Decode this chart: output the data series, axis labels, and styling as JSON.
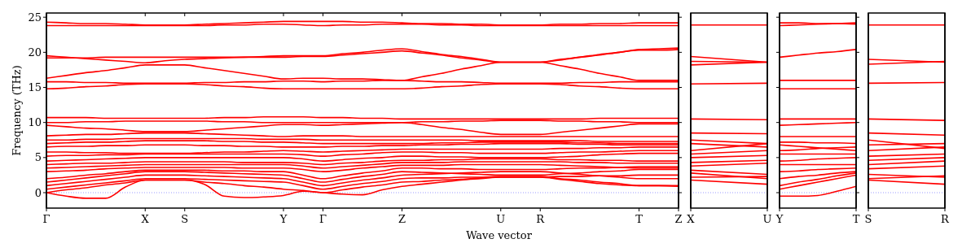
{
  "chart_data": [
    {
      "type": "line",
      "xlabel": "Wave vector",
      "ylabel": "Frequency (THz)",
      "ylim": [
        -2.2,
        25.6
      ],
      "yticks": [
        0,
        5,
        10,
        15,
        20,
        25
      ],
      "categories": [
        "Γ",
        null,
        null,
        null,
        null,
        "X",
        null,
        "S",
        null,
        null,
        null,
        null,
        "Y",
        null,
        "Γ",
        null,
        null,
        null,
        "Z",
        null,
        null,
        null,
        null,
        "U",
        null,
        "R",
        null,
        null,
        null,
        null,
        "T",
        null,
        "Z"
      ],
      "ref_lines": [
        {
          "axis": "y",
          "value": 0,
          "color": "#8080ff",
          "line_style": "dotted"
        }
      ],
      "series": [
        {
          "color": "#ff0000",
          "values": [
            0,
            -0.5,
            -0.8,
            -0.8,
            0.8,
            1.8,
            1.8,
            1.8,
            1.2,
            -0.5,
            -0.7,
            -0.6,
            -0.4,
            0.2,
            0,
            -0.2,
            -0.3,
            0.4,
            0.9,
            1.2,
            1.5,
            1.8,
            2.0,
            2.2,
            2.2,
            2.2,
            1.9,
            1.6,
            1.3,
            1.1,
            1.0,
            1.0,
            1.0
          ]
        },
        {
          "color": "#ff0000",
          "values": [
            0,
            0.4,
            0.7,
            1.1,
            1.4,
            1.8,
            1.8,
            1.8,
            1.5,
            1.3,
            1.0,
            0.8,
            0.5,
            0.3,
            0,
            0.4,
            0.8,
            1.1,
            1.5,
            1.6,
            1.8,
            1.9,
            2.1,
            2.2,
            2.2,
            2.2,
            2.3,
            2.3,
            2.4,
            2.4,
            2.5,
            2.5,
            2.5
          ]
        },
        {
          "color": "#ff0000",
          "values": [
            0.5,
            0.8,
            1.1,
            1.4,
            1.7,
            2.0,
            2.0,
            2.0,
            1.9,
            1.8,
            1.7,
            1.6,
            1.5,
            1.0,
            0.5,
            0.9,
            1.3,
            1.6,
            2.0,
            2.1,
            2.1,
            2.2,
            2.2,
            2.3,
            2.3,
            2.3,
            2.0,
            1.8,
            1.5,
            1.3,
            1.0,
            1.0,
            0.9
          ]
        },
        {
          "color": "#ff0000",
          "values": [
            1.0,
            1.3,
            1.6,
            1.9,
            2.2,
            2.5,
            2.5,
            2.5,
            2.4,
            2.3,
            2.2,
            2.1,
            2.0,
            1.5,
            1.0,
            1.4,
            1.8,
            2.1,
            2.5,
            2.6,
            2.7,
            2.8,
            2.9,
            3.0,
            3.0,
            3.0,
            2.8,
            2.6,
            2.4,
            2.2,
            2.0,
            2.0,
            2.0
          ]
        },
        {
          "color": "#ff0000",
          "values": [
            1.5,
            1.8,
            2.1,
            2.4,
            2.7,
            3.0,
            3.0,
            3.0,
            2.9,
            2.8,
            2.7,
            2.6,
            2.5,
            2.0,
            1.5,
            1.9,
            2.3,
            2.6,
            3.0,
            2.9,
            2.8,
            2.7,
            2.6,
            2.5,
            2.5,
            2.5,
            2.7,
            2.8,
            3.0,
            3.1,
            3.3,
            3.3,
            3.3
          ]
        },
        {
          "color": "#ff0000",
          "values": [
            2.0,
            2.2,
            2.5,
            2.7,
            3.0,
            3.2,
            3.2,
            3.2,
            3.2,
            3.1,
            3.1,
            3.0,
            3.0,
            2.5,
            2.0,
            2.4,
            2.8,
            3.1,
            3.5,
            3.5,
            3.4,
            3.4,
            3.3,
            3.3,
            3.3,
            3.3,
            3.4,
            3.5,
            3.5,
            3.6,
            3.7,
            3.7,
            3.7
          ]
        },
        {
          "color": "#ff0000",
          "values": [
            3.0,
            3.1,
            3.2,
            3.4,
            3.5,
            3.6,
            3.6,
            3.6,
            3.6,
            3.6,
            3.5,
            3.5,
            3.5,
            3.3,
            3.0,
            3.2,
            3.5,
            3.7,
            3.9,
            3.9,
            3.9,
            4.0,
            4.0,
            4.0,
            4.0,
            4.0,
            3.9,
            3.8,
            3.7,
            3.6,
            3.5,
            3.5,
            3.5
          ]
        },
        {
          "color": "#ff0000",
          "values": [
            3.5,
            3.6,
            3.7,
            3.8,
            3.9,
            4.0,
            4.0,
            4.0,
            4.0,
            4.0,
            4.0,
            4.0,
            4.0,
            3.8,
            3.5,
            3.7,
            3.9,
            4.1,
            4.3,
            4.3,
            4.3,
            4.4,
            4.4,
            4.4,
            4.4,
            4.4,
            4.4,
            4.3,
            4.3,
            4.2,
            4.2,
            4.2,
            4.2
          ]
        },
        {
          "color": "#ff0000",
          "values": [
            4.0,
            4.1,
            4.2,
            4.2,
            4.3,
            4.4,
            4.4,
            4.4,
            4.4,
            4.4,
            4.3,
            4.3,
            4.3,
            4.2,
            4.0,
            4.2,
            4.3,
            4.5,
            4.6,
            4.6,
            4.7,
            4.7,
            4.8,
            4.8,
            4.8,
            4.8,
            4.7,
            4.7,
            4.6,
            4.6,
            4.5,
            4.5,
            4.5
          ]
        },
        {
          "color": "#ff0000",
          "values": [
            4.5,
            4.6,
            4.7,
            4.8,
            4.9,
            5.0,
            5.0,
            5.0,
            5.0,
            5.0,
            5.0,
            5.0,
            5.0,
            4.8,
            4.5,
            4.7,
            4.9,
            5.0,
            5.2,
            5.2,
            5.1,
            5.1,
            5.0,
            5.0,
            5.0,
            5.0,
            5.1,
            5.2,
            5.4,
            5.5,
            5.6,
            5.6,
            5.6
          ]
        },
        {
          "color": "#ff0000",
          "values": [
            5.2,
            5.3,
            5.3,
            5.4,
            5.4,
            5.5,
            5.5,
            5.5,
            5.5,
            5.5,
            5.5,
            5.5,
            5.5,
            5.4,
            5.2,
            5.4,
            5.5,
            5.7,
            5.8,
            5.8,
            5.7,
            5.7,
            5.6,
            5.6,
            5.6,
            5.6,
            5.7,
            5.8,
            5.8,
            5.9,
            6.0,
            6.0,
            6.0
          ]
        },
        {
          "color": "#ff0000",
          "values": [
            5.8,
            5.8,
            5.7,
            5.7,
            5.6,
            5.6,
            5.6,
            5.6,
            5.7,
            5.8,
            5.8,
            5.9,
            6.0,
            5.9,
            5.8,
            5.9,
            6.0,
            6.1,
            6.2,
            6.2,
            6.2,
            6.2,
            6.2,
            6.2,
            6.2,
            6.2,
            6.3,
            6.3,
            6.4,
            6.4,
            6.5,
            6.5,
            6.5
          ]
        },
        {
          "color": "#ff0000",
          "values": [
            6.5,
            6.6,
            6.6,
            6.7,
            6.7,
            6.8,
            6.8,
            6.8,
            6.7,
            6.7,
            6.6,
            6.6,
            6.5,
            6.5,
            6.5,
            6.6,
            6.6,
            6.7,
            6.7,
            6.8,
            6.8,
            6.9,
            6.9,
            7.0,
            7.0,
            7.0,
            7.0,
            6.9,
            6.9,
            6.8,
            6.8,
            6.8,
            6.8
          ]
        },
        {
          "color": "#ff0000",
          "values": [
            7.0,
            7.1,
            7.2,
            7.2,
            7.3,
            7.4,
            7.4,
            7.4,
            7.4,
            7.3,
            7.3,
            7.2,
            7.2,
            7.1,
            7.0,
            7.0,
            7.0,
            7.0,
            7.0,
            7.0,
            7.1,
            7.1,
            7.2,
            7.2,
            7.2,
            7.2,
            7.2,
            7.1,
            7.1,
            7.0,
            7.0,
            7.0,
            7.0
          ]
        },
        {
          "color": "#ff0000",
          "values": [
            7.5,
            7.5,
            7.6,
            7.6,
            7.7,
            7.7,
            7.7,
            7.7,
            7.7,
            7.7,
            7.7,
            7.6,
            7.6,
            7.6,
            7.5,
            7.5,
            7.5,
            7.5,
            7.5,
            7.5,
            7.5,
            7.5,
            7.4,
            7.4,
            7.4,
            7.4,
            7.4,
            7.4,
            7.3,
            7.3,
            7.3,
            7.3,
            7.3
          ]
        },
        {
          "color": "#ff0000",
          "values": [
            8.1,
            8.2,
            8.3,
            8.3,
            8.4,
            8.5,
            8.5,
            8.5,
            8.4,
            8.3,
            8.2,
            8.1,
            8.0,
            8.1,
            8.1,
            8.1,
            8.0,
            8.0,
            8.0,
            8.0,
            8.0,
            8.0,
            8.0,
            8.0,
            8.0,
            8.0,
            8.0,
            8.0,
            8.0,
            8.0,
            8.0,
            8.0,
            8.0
          ]
        },
        {
          "color": "#ff0000",
          "values": [
            9.6,
            9.4,
            9.2,
            9.1,
            8.9,
            8.7,
            8.7,
            8.7,
            8.9,
            9.1,
            9.3,
            9.5,
            9.7,
            9.7,
            9.6,
            9.7,
            9.8,
            9.9,
            10.0,
            9.7,
            9.3,
            9.0,
            8.6,
            8.3,
            8.3,
            8.3,
            8.6,
            8.9,
            9.2,
            9.5,
            9.8,
            9.8,
            9.8
          ]
        },
        {
          "color": "#ff0000",
          "values": [
            10.0,
            10.0,
            10.1,
            10.1,
            10.2,
            10.2,
            10.2,
            10.2,
            10.2,
            10.1,
            10.1,
            10.0,
            10.0,
            10.0,
            10.0,
            10.0,
            10.0,
            10.0,
            10.0,
            10.1,
            10.1,
            10.2,
            10.2,
            10.3,
            10.3,
            10.3,
            10.2,
            10.2,
            10.1,
            10.1,
            10.0,
            10.0,
            10.0
          ]
        },
        {
          "color": "#ff0000",
          "values": [
            10.7,
            10.7,
            10.7,
            10.6,
            10.6,
            10.6,
            10.6,
            10.6,
            10.6,
            10.7,
            10.7,
            10.8,
            10.8,
            10.8,
            10.7,
            10.7,
            10.6,
            10.6,
            10.5,
            10.5,
            10.5,
            10.5,
            10.5,
            10.5,
            10.5,
            10.5,
            10.5,
            10.5,
            10.6,
            10.6,
            10.6,
            10.6,
            10.6
          ]
        },
        {
          "color": "#ff0000",
          "values": [
            14.8,
            14.9,
            15.1,
            15.2,
            15.4,
            15.5,
            15.5,
            15.5,
            15.4,
            15.2,
            15.1,
            14.9,
            14.8,
            14.8,
            14.8,
            14.8,
            14.8,
            14.8,
            14.8,
            14.9,
            15.1,
            15.2,
            15.4,
            15.5,
            15.5,
            15.5,
            15.4,
            15.2,
            15.1,
            14.9,
            14.8,
            14.8,
            14.8
          ]
        },
        {
          "color": "#ff0000",
          "values": [
            15.8,
            15.8,
            15.7,
            15.7,
            15.6,
            15.6,
            15.6,
            15.6,
            15.7,
            15.7,
            15.8,
            15.8,
            15.9,
            15.9,
            15.8,
            15.9,
            15.9,
            16.0,
            16.0,
            15.9,
            15.8,
            15.8,
            15.7,
            15.6,
            15.6,
            15.6,
            15.6,
            15.7,
            15.7,
            15.8,
            15.8,
            15.8,
            15.8
          ]
        },
        {
          "color": "#ff0000",
          "values": [
            16.3,
            16.7,
            17.1,
            17.4,
            17.8,
            18.2,
            18.2,
            18.2,
            17.8,
            17.4,
            17.0,
            16.6,
            16.2,
            16.3,
            16.3,
            16.2,
            16.2,
            16.1,
            16.0,
            16.5,
            17.0,
            17.6,
            18.1,
            18.6,
            18.6,
            18.6,
            18.1,
            17.6,
            17.0,
            16.5,
            16.0,
            16.0,
            16.0
          ]
        },
        {
          "color": "#ff0000",
          "values": [
            19.2,
            19.2,
            19.2,
            19.3,
            19.3,
            19.3,
            19.3,
            19.3,
            19.3,
            19.3,
            19.3,
            19.3,
            19.3,
            19.4,
            19.4,
            19.6,
            19.8,
            20.0,
            20.2,
            19.9,
            19.6,
            19.2,
            18.9,
            18.6,
            18.6,
            18.6,
            18.9,
            19.3,
            19.6,
            20.0,
            20.3,
            20.3,
            20.4
          ]
        },
        {
          "color": "#ff0000",
          "values": [
            19.5,
            19.3,
            19.1,
            18.9,
            18.7,
            18.5,
            18.8,
            19.0,
            19.1,
            19.2,
            19.3,
            19.4,
            19.5,
            19.5,
            19.5,
            19.8,
            20.0,
            20.3,
            20.5,
            20.1,
            19.7,
            19.4,
            19.0,
            18.6,
            18.6,
            18.6,
            19.0,
            19.3,
            19.7,
            20.0,
            20.4,
            20.5,
            20.6
          ]
        },
        {
          "color": "#ff0000",
          "values": [
            23.8,
            23.8,
            23.8,
            23.8,
            23.8,
            23.8,
            23.8,
            23.8,
            23.8,
            23.9,
            23.9,
            24.0,
            24.0,
            23.9,
            23.8,
            23.9,
            23.9,
            24.0,
            24.0,
            24.0,
            23.9,
            23.9,
            23.8,
            23.8,
            23.8,
            23.8,
            23.8,
            23.8,
            23.8,
            23.8,
            23.8,
            23.8,
            23.8
          ]
        },
        {
          "color": "#ff0000",
          "values": [
            24.3,
            24.2,
            24.1,
            24.1,
            24.0,
            23.9,
            23.9,
            23.9,
            24.0,
            24.1,
            24.2,
            24.3,
            24.4,
            24.4,
            24.4,
            24.4,
            24.3,
            24.3,
            24.2,
            24.1,
            24.1,
            24.0,
            24.0,
            23.9,
            23.9,
            23.9,
            24.0,
            24.0,
            24.1,
            24.1,
            24.2,
            24.2,
            24.2
          ]
        }
      ]
    },
    {
      "type": "line",
      "tick_labels": "x",
      "ylim": [
        -2.2,
        25.6
      ],
      "categories": [
        "X",
        "U"
      ],
      "ref_lines": [
        {
          "axis": "y",
          "value": 0,
          "color": "#8080ff",
          "line_style": "dotted"
        }
      ],
      "series": [
        {
          "color": "#ff0000",
          "values": [
            1.8,
            1.2
          ]
        },
        {
          "color": "#ff0000",
          "values": [
            2.2,
            2.3
          ]
        },
        {
          "color": "#ff0000",
          "values": [
            2.8,
            2.0
          ]
        },
        {
          "color": "#ff0000",
          "values": [
            3.2,
            2.6
          ]
        },
        {
          "color": "#ff0000",
          "values": [
            3.8,
            4.2
          ]
        },
        {
          "color": "#ff0000",
          "values": [
            4.3,
            4.6
          ]
        },
        {
          "color": "#ff0000",
          "values": [
            5.0,
            5.3
          ]
        },
        {
          "color": "#ff0000",
          "values": [
            5.5,
            6.0
          ]
        },
        {
          "color": "#ff0000",
          "values": [
            6.0,
            7.0
          ]
        },
        {
          "color": "#ff0000",
          "values": [
            7.0,
            6.5
          ]
        },
        {
          "color": "#ff0000",
          "values": [
            7.5,
            7.0
          ]
        },
        {
          "color": "#ff0000",
          "values": [
            8.5,
            8.4
          ]
        },
        {
          "color": "#ff0000",
          "values": [
            10.5,
            10.4
          ]
        },
        {
          "color": "#ff0000",
          "values": [
            15.5,
            15.6
          ]
        },
        {
          "color": "#ff0000",
          "values": [
            18.2,
            18.6
          ]
        },
        {
          "color": "#ff0000",
          "values": [
            18.7,
            18.6
          ]
        },
        {
          "color": "#ff0000",
          "values": [
            19.4,
            18.6
          ]
        },
        {
          "color": "#ff0000",
          "values": [
            23.9,
            23.9
          ]
        }
      ]
    },
    {
      "type": "line",
      "tick_labels": "x",
      "ylim": [
        -2.2,
        25.6
      ],
      "yticks": [
        {
          "value": 0,
          "label": null
        },
        {
          "value": 5,
          "label": null
        },
        {
          "value": 10,
          "label": null
        },
        {
          "value": 15,
          "label": null
        },
        {
          "value": 20,
          "label": null
        },
        {
          "value": 25,
          "label": null
        }
      ],
      "categories": [
        "Y",
        null,
        null,
        null,
        "T"
      ],
      "ref_lines": [
        {
          "axis": "y",
          "value": 0,
          "color": "#8080ff",
          "line_style": "dotted"
        }
      ],
      "series": [
        {
          "color": "#ff0000",
          "values": [
            -0.5,
            -0.5,
            -0.4,
            0.2,
            0.9
          ]
        },
        {
          "color": "#ff0000",
          "values": [
            0.5,
            1.0,
            1.5,
            2.0,
            2.5
          ]
        },
        {
          "color": "#ff0000",
          "values": [
            1.0,
            1.5,
            1.9,
            2.4,
            2.8
          ]
        },
        {
          "color": "#ff0000",
          "values": [
            2.0,
            2.3,
            2.5,
            2.8,
            3.0
          ]
        },
        {
          "color": "#ff0000",
          "values": [
            3.0,
            3.1,
            3.3,
            3.4,
            3.5
          ]
        },
        {
          "color": "#ff0000",
          "values": [
            4.0,
            4.0,
            4.0,
            4.0,
            4.0
          ]
        },
        {
          "color": "#ff0000",
          "values": [
            4.5,
            4.6,
            4.8,
            4.9,
            5.0
          ]
        },
        {
          "color": "#ff0000",
          "values": [
            5.5,
            5.5,
            5.5,
            5.5,
            5.5
          ]
        },
        {
          "color": "#ff0000",
          "values": [
            6.0,
            6.1,
            6.3,
            6.4,
            6.5
          ]
        },
        {
          "color": "#ff0000",
          "values": [
            6.8,
            6.6,
            6.4,
            6.2,
            6.0
          ]
        },
        {
          "color": "#ff0000",
          "values": [
            7.2,
            7.2,
            7.1,
            7.1,
            7.0
          ]
        },
        {
          "color": "#ff0000",
          "values": [
            8.0,
            8.0,
            8.0,
            8.0,
            8.0
          ]
        },
        {
          "color": "#ff0000",
          "values": [
            9.6,
            9.7,
            9.8,
            9.9,
            10.0
          ]
        },
        {
          "color": "#ff0000",
          "values": [
            10.5,
            10.5,
            10.5,
            10.5,
            10.5
          ]
        },
        {
          "color": "#ff0000",
          "values": [
            14.8,
            14.8,
            14.8,
            14.8,
            14.8
          ]
        },
        {
          "color": "#ff0000",
          "values": [
            16.0,
            16.0,
            16.0,
            16.0,
            16.0
          ]
        },
        {
          "color": "#ff0000",
          "values": [
            19.3,
            19.6,
            19.9,
            20.1,
            20.4
          ]
        },
        {
          "color": "#ff0000",
          "values": [
            23.8,
            23.9,
            24.0,
            24.1,
            24.2
          ]
        },
        {
          "color": "#ff0000",
          "values": [
            24.2,
            24.2,
            24.1,
            24.1,
            24.0
          ]
        }
      ]
    },
    {
      "type": "line",
      "tick_labels": "x",
      "ylim": [
        -2.2,
        25.6
      ],
      "categories": [
        "S",
        "R"
      ],
      "ref_lines": [
        {
          "axis": "y",
          "value": 0,
          "color": "#8080ff",
          "line_style": "dotted"
        }
      ],
      "series": [
        {
          "color": "#ff0000",
          "values": [
            1.8,
            1.2
          ]
        },
        {
          "color": "#ff0000",
          "values": [
            2.0,
            2.4
          ]
        },
        {
          "color": "#ff0000",
          "values": [
            2.6,
            2.2
          ]
        },
        {
          "color": "#ff0000",
          "values": [
            3.4,
            3.8
          ]
        },
        {
          "color": "#ff0000",
          "values": [
            4.0,
            4.5
          ]
        },
        {
          "color": "#ff0000",
          "values": [
            4.6,
            5.0
          ]
        },
        {
          "color": "#ff0000",
          "values": [
            5.2,
            5.5
          ]
        },
        {
          "color": "#ff0000",
          "values": [
            6.0,
            6.5
          ]
        },
        {
          "color": "#ff0000",
          "values": [
            6.8,
            7.0
          ]
        },
        {
          "color": "#ff0000",
          "values": [
            7.5,
            6.3
          ]
        },
        {
          "color": "#ff0000",
          "values": [
            8.5,
            8.2
          ]
        },
        {
          "color": "#ff0000",
          "values": [
            10.5,
            10.3
          ]
        },
        {
          "color": "#ff0000",
          "values": [
            15.6,
            15.7
          ]
        },
        {
          "color": "#ff0000",
          "values": [
            18.3,
            18.7
          ]
        },
        {
          "color": "#ff0000",
          "values": [
            19.0,
            18.6
          ]
        },
        {
          "color": "#ff0000",
          "values": [
            23.9,
            23.9
          ]
        }
      ]
    }
  ]
}
